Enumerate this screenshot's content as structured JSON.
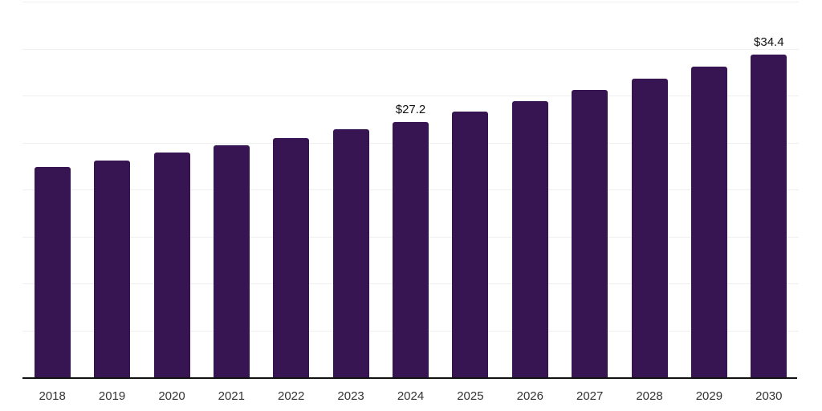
{
  "chart_data": {
    "type": "bar",
    "title": "",
    "xlabel": "",
    "ylabel": "",
    "categories": [
      "2018",
      "2019",
      "2020",
      "2021",
      "2022",
      "2023",
      "2024",
      "2025",
      "2026",
      "2027",
      "2028",
      "2029",
      "2030"
    ],
    "values": [
      22.4,
      23.1,
      23.9,
      24.7,
      25.5,
      26.4,
      27.2,
      28.3,
      29.4,
      30.6,
      31.8,
      33.1,
      34.4
    ],
    "bar_labels": {
      "2024": "$27.2",
      "2030": "$34.4"
    },
    "ylim": [
      0,
      40
    ],
    "grid_step": 5,
    "grid": true,
    "legend": false,
    "y_tick_labels_visible": false,
    "colors": {
      "bar": "#371553",
      "gridline": "#efefef",
      "axis_line": "#111111",
      "tick_label": "#333333",
      "data_label": "#111111",
      "background": "#ffffff"
    }
  }
}
